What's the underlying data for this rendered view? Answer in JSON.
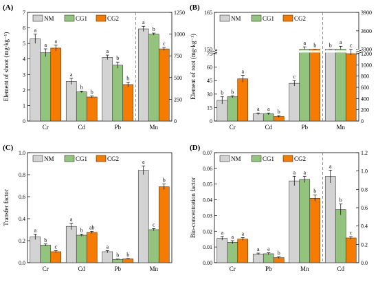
{
  "legend": [
    {
      "name": "NM",
      "color": "#d3d3d3"
    },
    {
      "name": "CG1",
      "color": "#93c47d"
    },
    {
      "name": "CG2",
      "color": "#f57c00"
    }
  ],
  "chart_data": [
    {
      "panel": "(A)",
      "type": "bar",
      "ylabel": "Element of shoot (mg·kg⁻¹)",
      "categories": [
        "Cr",
        "Cd",
        "Pb",
        "Mn"
      ],
      "ylim": [
        0,
        7
      ],
      "yticks": [
        0,
        1,
        2,
        3,
        4,
        5,
        6,
        7
      ],
      "right_axis": {
        "ylim": [
          0,
          1250
        ],
        "ticks": [
          0,
          250,
          500,
          750,
          1000,
          1250
        ],
        "applies_to": [
          "Mn"
        ]
      },
      "divider_after": "Pb",
      "series": [
        {
          "name": "NM",
          "values": [
            5.3,
            2.55,
            4.1,
            1060
          ],
          "errors": [
            0.3,
            0.2,
            0.15,
            30
          ]
        },
        {
          "name": "CG1",
          "values": [
            4.4,
            1.88,
            3.6,
            1000
          ],
          "errors": [
            0.25,
            0.05,
            0.2,
            12
          ]
        },
        {
          "name": "CG2",
          "values": [
            4.7,
            1.55,
            2.35,
            830
          ],
          "errors": [
            0.2,
            0.06,
            0.15,
            18
          ]
        }
      ],
      "labels": [
        [
          "a",
          "a",
          "a",
          "a"
        ],
        [
          "a",
          "b",
          "b",
          "b"
        ],
        [
          "a",
          "b",
          "b",
          "c"
        ]
      ]
    },
    {
      "panel": "(B)",
      "type": "bar",
      "ylabel": "Element of root (mg·kg⁻¹)",
      "categories": [
        "Cr",
        "Cd",
        "Pb",
        "Mn"
      ],
      "ylim": [
        0,
        165
      ],
      "yticks": [
        0,
        15,
        30,
        45,
        60,
        75,
        150,
        165
      ],
      "axis_break": [
        75,
        150
      ],
      "right_axis": {
        "ylim": [
          0,
          3900
        ],
        "ticks": [
          0,
          200,
          400,
          600,
          800,
          1000,
          1200,
          3300,
          3600,
          3900
        ],
        "axis_break": [
          1200,
          3300
        ],
        "applies_to": [
          "Mn"
        ]
      },
      "divider_after": "Pb",
      "series": [
        {
          "name": "NM",
          "values": [
            23,
            8,
            42,
            1270
          ],
          "errors": [
            4,
            1,
            3,
            25
          ]
        },
        {
          "name": "CG1",
          "values": [
            27,
            8,
            148,
            3300
          ],
          "errors": [
            1,
            1,
            3,
            50
          ]
        },
        {
          "name": "CG2",
          "values": [
            47,
            5,
            145,
            1200
          ],
          "errors": [
            4,
            1,
            3,
            25
          ]
        }
      ],
      "labels": [
        [
          "b",
          "a",
          "c",
          "b"
        ],
        [
          "b",
          "a",
          "a",
          "a"
        ],
        [
          "a",
          "b",
          "b",
          "c"
        ]
      ]
    },
    {
      "panel": "(C)",
      "type": "bar",
      "ylabel": "Transfer factor",
      "categories": [
        "Cr",
        "Cd",
        "Pb",
        "Mn"
      ],
      "ylim": [
        0,
        1.0
      ],
      "yticks": [
        0.0,
        0.2,
        0.4,
        0.6,
        0.8,
        1.0
      ],
      "divider_after": null,
      "series": [
        {
          "name": "NM",
          "values": [
            0.235,
            0.33,
            0.1,
            0.84
          ],
          "errors": [
            0.025,
            0.03,
            0.01,
            0.04
          ]
        },
        {
          "name": "CG1",
          "values": [
            0.16,
            0.25,
            0.03,
            0.3
          ],
          "errors": [
            0.01,
            0.01,
            0.003,
            0.01
          ]
        },
        {
          "name": "CG2",
          "values": [
            0.1,
            0.275,
            0.035,
            0.69
          ],
          "errors": [
            0.01,
            0.01,
            0.003,
            0.025
          ]
        }
      ],
      "labels": [
        [
          "a",
          "a",
          "a",
          "a"
        ],
        [
          "b",
          "b",
          "b",
          "c"
        ],
        [
          "c",
          "ab",
          "b",
          "b"
        ]
      ]
    },
    {
      "panel": "(D)",
      "type": "bar",
      "ylabel": "Bio-concentration factor",
      "categories": [
        "Cr",
        "Pb",
        "Mn",
        "Cd"
      ],
      "ylim": [
        0,
        0.07
      ],
      "yticks": [
        0.0,
        0.01,
        0.02,
        0.03,
        0.04,
        0.05,
        0.06,
        0.07
      ],
      "right_axis": {
        "ylim": [
          0,
          1.2
        ],
        "ticks": [
          0.0,
          0.2,
          0.4,
          0.6,
          0.8,
          1.0,
          1.2
        ],
        "applies_to": [
          "Cd"
        ]
      },
      "divider_after": "Mn",
      "series": [
        {
          "name": "NM",
          "values": [
            0.0155,
            0.0055,
            0.052,
            0.94
          ],
          "errors": [
            0.0012,
            0.0006,
            0.003,
            0.07
          ]
        },
        {
          "name": "CG1",
          "values": [
            0.013,
            0.0057,
            0.053,
            0.58
          ],
          "errors": [
            0.001,
            0.0006,
            0.002,
            0.06
          ]
        },
        {
          "name": "CG2",
          "values": [
            0.015,
            0.0032,
            0.041,
            0.27
          ],
          "errors": [
            0.001,
            0.0005,
            0.002,
            0.015
          ]
        }
      ],
      "labels": [
        [
          "a",
          "a",
          "a",
          "a"
        ],
        [
          "a",
          "a",
          "a",
          "b"
        ],
        [
          "a",
          "b",
          "b",
          "c"
        ]
      ]
    }
  ]
}
